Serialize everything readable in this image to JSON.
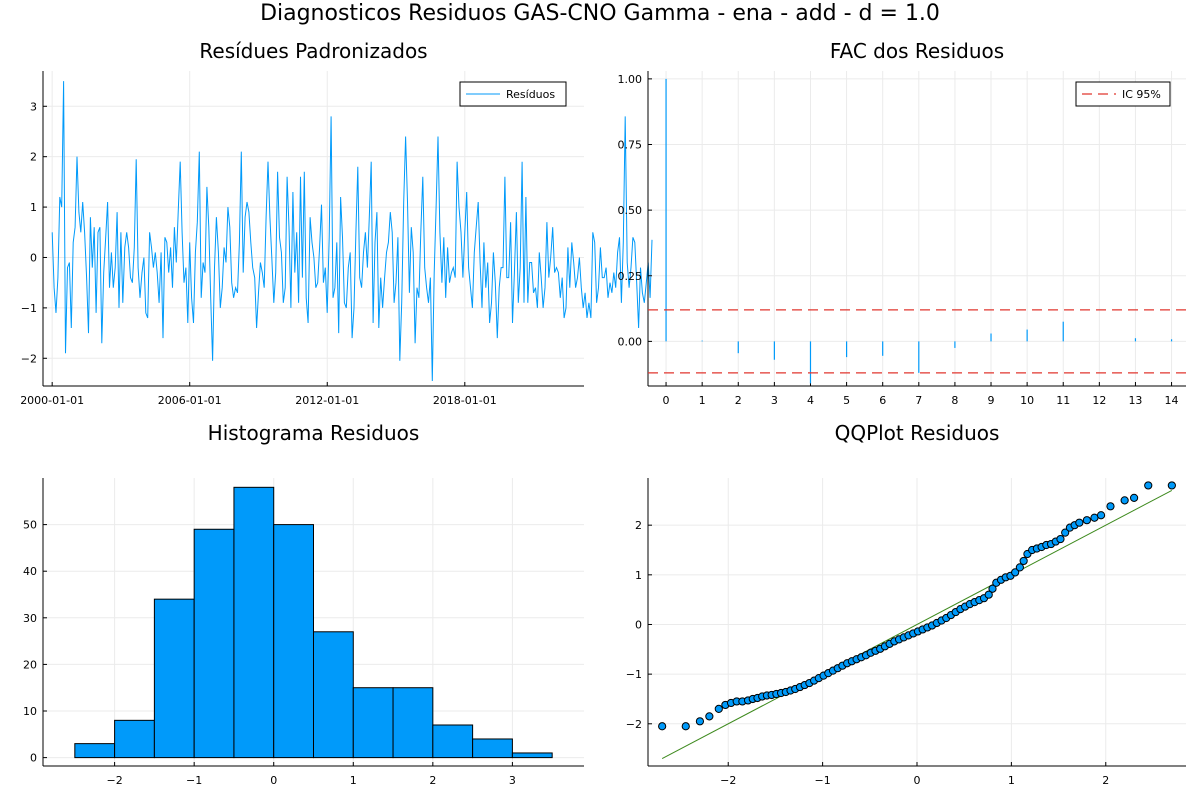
{
  "figure": {
    "suptitle": "Diagnosticos Residuos  GAS-CNO Gamma - ena - add - d = 1.0"
  },
  "colors": {
    "series": "#009AFA",
    "ci": "#E0362F",
    "qqline": "#3E8A1E",
    "grid": "#EBEBEB",
    "axis": "#000000"
  },
  "chart_data": [
    {
      "id": "residuals",
      "type": "line",
      "title": "Resídues Padronizados",
      "legend": {
        "label": "Resíduos",
        "placement": "top-right"
      },
      "xlim": [
        1999.6,
        2023.2
      ],
      "ylim": [
        -2.55,
        3.7
      ],
      "xticks": [
        {
          "value": 2000,
          "label": "2000-01-01"
        },
        {
          "value": 2006,
          "label": "2006-01-01"
        },
        {
          "value": 2012,
          "label": "2012-01-01"
        },
        {
          "value": 2018,
          "label": "2018-01-01"
        }
      ],
      "yticks": [
        -2,
        -1,
        0,
        1,
        2,
        3
      ],
      "x_start": 2000.0,
      "x_step": 0.08333,
      "values": [
        0.5,
        -0.6,
        -1.1,
        -0.4,
        1.2,
        1.0,
        3.5,
        -1.9,
        -0.2,
        -0.1,
        -1.4,
        0.3,
        0.6,
        2.0,
        0.9,
        0.5,
        1.1,
        0.5,
        -0.4,
        -1.5,
        0.8,
        -0.2,
        0.6,
        -1.1,
        0.5,
        0.6,
        -1.7,
        -0.3,
        0.4,
        1.1,
        -0.6,
        0.1,
        -0.6,
        -0.2,
        0.9,
        -1.0,
        0.5,
        -0.9,
        0.2,
        0.5,
        0.2,
        -0.4,
        -0.5,
        0.2,
        1.95,
        -0.2,
        -0.8,
        -0.3,
        0.0,
        -1.1,
        -1.2,
        0.5,
        0.2,
        -0.2,
        0.1,
        -0.3,
        -0.9,
        0.1,
        -1.6,
        0.4,
        0.3,
        -0.3,
        0.2,
        -0.6,
        0.6,
        -0.1,
        0.9,
        1.9,
        0.5,
        -0.5,
        -0.2,
        -1.3,
        0.3,
        -0.8,
        -1.3,
        0.1,
        0.7,
        2.1,
        -0.8,
        -0.1,
        -0.3,
        1.4,
        0.6,
        -0.8,
        -2.05,
        -0.2,
        0.8,
        0.1,
        -1.0,
        -0.6,
        0.2,
        -0.1,
        1.0,
        0.6,
        -0.5,
        -0.8,
        -0.6,
        -0.7,
        0.3,
        2.1,
        -0.3,
        0.8,
        1.1,
        0.9,
        0.3,
        -0.2,
        -0.4,
        -1.4,
        -0.7,
        -0.1,
        -0.3,
        -0.6,
        0.8,
        1.9,
        0.8,
        0.0,
        -0.9,
        -0.3,
        1.7,
        0.4,
        0.1,
        -0.9,
        -0.6,
        1.6,
        0.6,
        -1.0,
        1.3,
        -0.3,
        0.5,
        -0.9,
        1.6,
        -0.4,
        1.7,
        -0.8,
        -1.3,
        0.8,
        0.3,
        0.0,
        -0.6,
        -0.5,
        0.2,
        1.05,
        -0.5,
        -0.2,
        -1.1,
        0.4,
        2.8,
        -0.8,
        -0.6,
        0.3,
        -1.5,
        1.2,
        0.4,
        -0.9,
        -1.0,
        -0.2,
        0.1,
        -1.6,
        -1.0,
        0.5,
        1.8,
        -0.4,
        -0.6,
        0.1,
        0.5,
        -0.2,
        0.8,
        1.9,
        -1.3,
        0.3,
        0.9,
        -1.4,
        -0.4,
        -1.0,
        -0.4,
        0.1,
        0.3,
        0.9,
        0.5,
        -0.9,
        -0.5,
        0.4,
        -2.05,
        -0.9,
        1.1,
        2.4,
        1.1,
        -0.7,
        0.6,
        0.1,
        -1.7,
        -0.6,
        -0.8,
        0.5,
        1.6,
        -0.2,
        -0.6,
        -0.9,
        -0.4,
        -2.45,
        -0.3,
        1.0,
        2.4,
        0.5,
        -0.5,
        0.4,
        -0.8,
        0.2,
        -0.5,
        -0.3,
        -0.2,
        -0.4,
        1.9,
        1.0,
        0.5,
        -0.4,
        0.5,
        1.3,
        -0.2,
        -0.6,
        -1.0,
        0.1,
        0.6,
        1.1,
        -0.1,
        -1.0,
        0.3,
        -0.6,
        -0.1,
        -1.3,
        -0.9,
        0.1,
        -0.5,
        -1.6,
        -0.6,
        -0.2,
        -0.2,
        1.6,
        -0.4,
        -0.4,
        0.7,
        -1.3,
        -0.3,
        0.9,
        -0.9,
        -0.2,
        1.9,
        -0.9,
        1.2,
        -0.9,
        -0.1,
        -0.1,
        -0.7,
        -0.6,
        -1.0,
        0.1,
        -0.4,
        -1.0,
        -0.6,
        0.7,
        -0.4,
        0.0,
        0.6,
        -0.3,
        -0.2,
        -0.3,
        -0.8,
        -0.4,
        -1.2,
        -1.0,
        0.2,
        -0.6,
        0.3,
        -0.1,
        -0.6,
        -0.4,
        0.0,
        -0.6,
        -1.0,
        -0.7,
        -1.2,
        -0.9,
        -1.2,
        0.5,
        0.3,
        -0.9,
        -0.6,
        0.2,
        -0.4,
        -0.4,
        -0.2,
        -0.8,
        -0.5,
        -0.7,
        -0.3,
        -0.6,
        0.1,
        0.4,
        -0.9,
        0.3,
        2.8,
        -0.1,
        -0.6,
        -0.2,
        0.4,
        0.3,
        -0.5,
        -1.4,
        -0.2,
        -0.7,
        -0.9,
        -0.5,
        -0.1,
        -0.8,
        0.35
      ]
    },
    {
      "id": "acf",
      "type": "bar",
      "title": "FAC dos Residuos",
      "legend": {
        "label": "IC 95%",
        "placement": "top-right"
      },
      "xlim": [
        -0.5,
        14.4
      ],
      "ylim": [
        -0.17,
        1.03
      ],
      "xticks": [
        0,
        1,
        2,
        3,
        4,
        5,
        6,
        7,
        8,
        9,
        10,
        11,
        12,
        13,
        14
      ],
      "yticks": [
        0.0,
        0.25,
        0.5,
        0.75,
        1.0
      ],
      "ytick_labels": [
        "0.00",
        "0.25",
        "0.50",
        "0.75",
        "1.00"
      ],
      "lags": [
        0,
        1,
        2,
        3,
        4,
        5,
        6,
        7,
        8,
        9,
        10,
        11,
        12,
        13,
        14
      ],
      "values": [
        1.0,
        0.003,
        -0.045,
        -0.07,
        -0.16,
        -0.06,
        -0.055,
        -0.12,
        -0.025,
        0.03,
        0.045,
        0.075,
        0.0,
        0.012,
        0.008
      ],
      "ci": [
        0.12,
        -0.12
      ]
    },
    {
      "id": "histogram",
      "type": "bar",
      "title": "Histograma Residuos",
      "xlim": [
        -2.9,
        3.9
      ],
      "ylim": [
        -1.8,
        60
      ],
      "xticks": [
        -2,
        -1,
        0,
        1,
        2,
        3
      ],
      "xtick_labels": [
        "−2",
        "−1",
        "0",
        "1",
        "2",
        "3"
      ],
      "yticks": [
        0,
        10,
        20,
        30,
        40,
        50
      ],
      "bin_edges": [
        -2.5,
        -2.0,
        -1.5,
        -1.0,
        -0.5,
        0.0,
        0.5,
        1.0,
        1.5,
        2.0,
        2.5,
        3.0,
        3.5
      ],
      "counts": [
        3,
        8,
        34,
        49,
        58,
        50,
        27,
        15,
        15,
        7,
        4,
        1
      ]
    },
    {
      "id": "qqplot",
      "type": "scatter",
      "title": "QQPlot Residuos",
      "xlim": [
        -2.85,
        2.85
      ],
      "ylim": [
        -2.85,
        2.95
      ],
      "xticks": [
        -2,
        -1,
        0,
        1,
        2
      ],
      "xtick_labels": [
        "−2",
        "−1",
        "0",
        "1",
        "2"
      ],
      "yticks": [
        -2,
        -1,
        0,
        1,
        2
      ],
      "ytick_labels": [
        "−2",
        "−1",
        "0",
        "1",
        "2"
      ],
      "reference_line": [
        [
          -2.7,
          -2.7
        ],
        [
          2.7,
          2.7
        ]
      ],
      "points": [
        [
          -2.7,
          -2.05
        ],
        [
          -2.45,
          -2.05
        ],
        [
          -2.3,
          -1.95
        ],
        [
          -2.2,
          -1.85
        ],
        [
          -2.1,
          -1.7
        ],
        [
          -2.03,
          -1.62
        ],
        [
          -1.97,
          -1.58
        ],
        [
          -1.91,
          -1.55
        ],
        [
          -1.85,
          -1.55
        ],
        [
          -1.79,
          -1.53
        ],
        [
          -1.74,
          -1.5
        ],
        [
          -1.69,
          -1.48
        ],
        [
          -1.64,
          -1.45
        ],
        [
          -1.59,
          -1.43
        ],
        [
          -1.54,
          -1.42
        ],
        [
          -1.49,
          -1.4
        ],
        [
          -1.44,
          -1.38
        ],
        [
          -1.39,
          -1.36
        ],
        [
          -1.34,
          -1.33
        ],
        [
          -1.29,
          -1.3
        ],
        [
          -1.24,
          -1.26
        ],
        [
          -1.19,
          -1.22
        ],
        [
          -1.14,
          -1.18
        ],
        [
          -1.09,
          -1.13
        ],
        [
          -1.04,
          -1.08
        ],
        [
          -0.99,
          -1.03
        ],
        [
          -0.94,
          -0.98
        ],
        [
          -0.89,
          -0.93
        ],
        [
          -0.84,
          -0.88
        ],
        [
          -0.79,
          -0.83
        ],
        [
          -0.74,
          -0.78
        ],
        [
          -0.69,
          -0.74
        ],
        [
          -0.64,
          -0.7
        ],
        [
          -0.59,
          -0.66
        ],
        [
          -0.54,
          -0.62
        ],
        [
          -0.49,
          -0.57
        ],
        [
          -0.44,
          -0.53
        ],
        [
          -0.39,
          -0.49
        ],
        [
          -0.34,
          -0.44
        ],
        [
          -0.29,
          -0.39
        ],
        [
          -0.24,
          -0.34
        ],
        [
          -0.19,
          -0.3
        ],
        [
          -0.14,
          -0.26
        ],
        [
          -0.09,
          -0.22
        ],
        [
          -0.04,
          -0.18
        ],
        [
          0.01,
          -0.14
        ],
        [
          0.06,
          -0.1
        ],
        [
          0.11,
          -0.06
        ],
        [
          0.16,
          -0.02
        ],
        [
          0.21,
          0.03
        ],
        [
          0.26,
          0.08
        ],
        [
          0.31,
          0.13
        ],
        [
          0.36,
          0.19
        ],
        [
          0.41,
          0.25
        ],
        [
          0.46,
          0.31
        ],
        [
          0.51,
          0.36
        ],
        [
          0.56,
          0.41
        ],
        [
          0.61,
          0.45
        ],
        [
          0.66,
          0.49
        ],
        [
          0.71,
          0.53
        ],
        [
          0.76,
          0.6
        ],
        [
          0.8,
          0.72
        ],
        [
          0.84,
          0.84
        ],
        [
          0.89,
          0.9
        ],
        [
          0.94,
          0.95
        ],
        [
          0.99,
          0.98
        ],
        [
          1.04,
          1.05
        ],
        [
          1.09,
          1.15
        ],
        [
          1.13,
          1.28
        ],
        [
          1.17,
          1.42
        ],
        [
          1.22,
          1.5
        ],
        [
          1.27,
          1.53
        ],
        [
          1.32,
          1.56
        ],
        [
          1.37,
          1.6
        ],
        [
          1.42,
          1.62
        ],
        [
          1.47,
          1.67
        ],
        [
          1.52,
          1.72
        ],
        [
          1.57,
          1.85
        ],
        [
          1.62,
          1.95
        ],
        [
          1.67,
          2.0
        ],
        [
          1.72,
          2.05
        ],
        [
          1.8,
          2.1
        ],
        [
          1.88,
          2.15
        ],
        [
          1.95,
          2.2
        ],
        [
          2.05,
          2.38
        ],
        [
          2.2,
          2.5
        ],
        [
          2.3,
          2.55
        ],
        [
          2.45,
          2.8
        ],
        [
          2.7,
          2.8
        ]
      ]
    }
  ]
}
